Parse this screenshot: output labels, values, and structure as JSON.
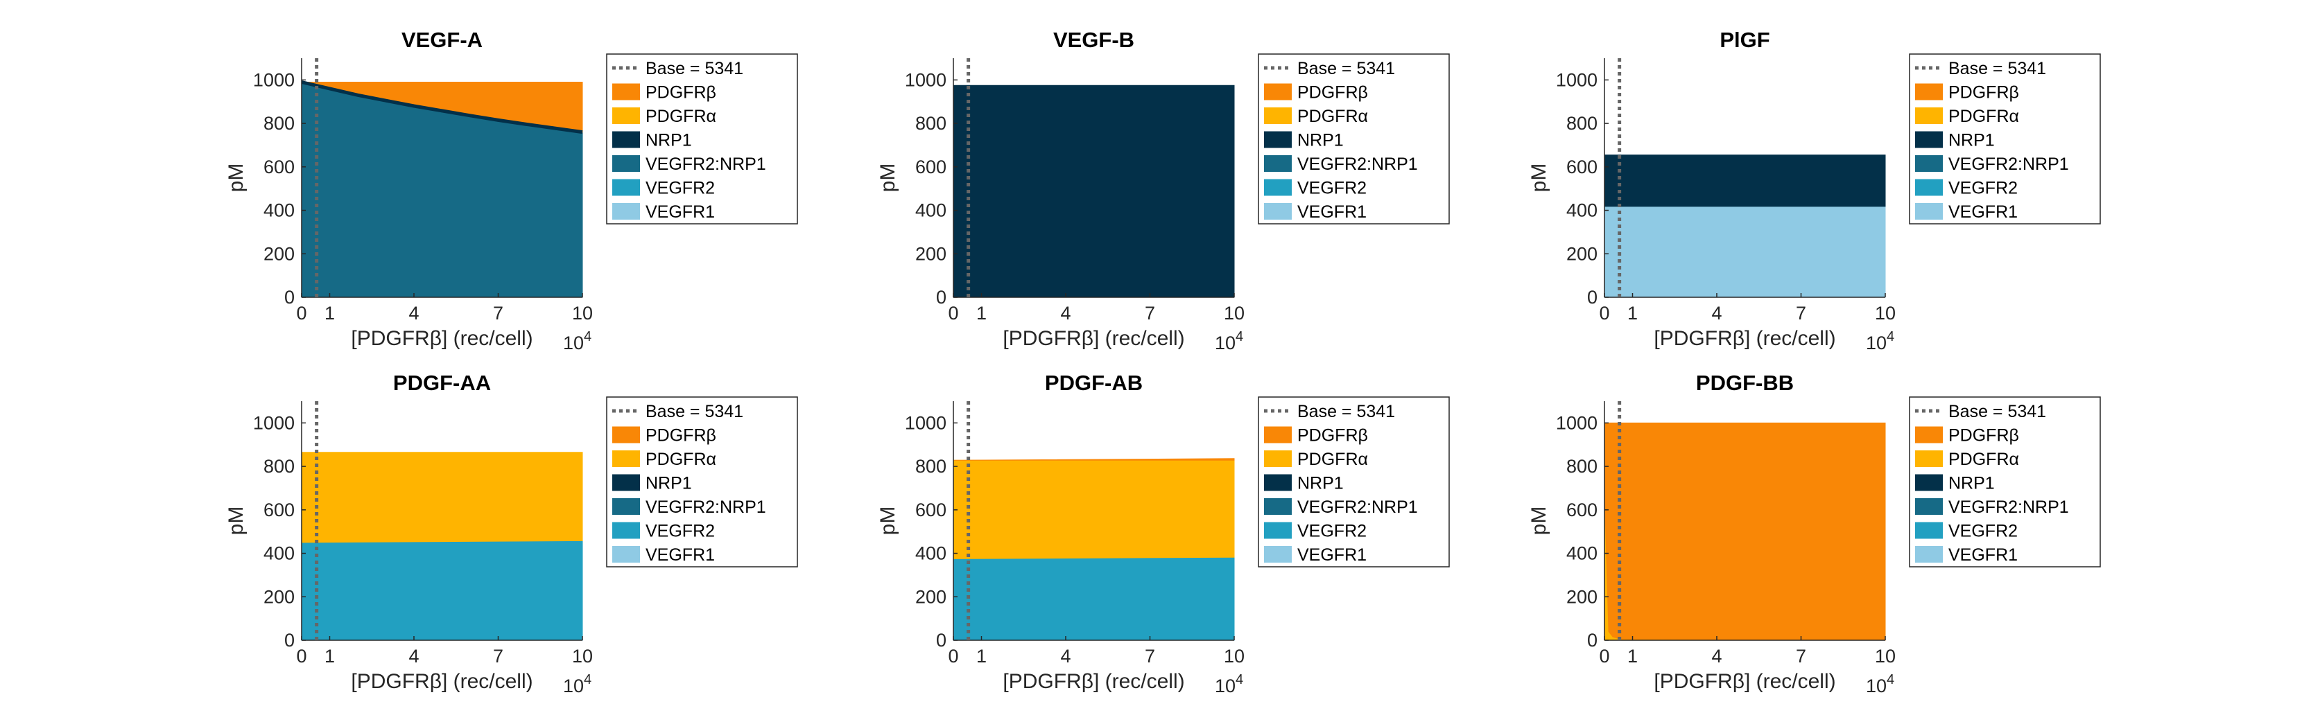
{
  "figure": {
    "legend_entries": [
      {
        "label": "Base = 5341",
        "style": "dotted-line",
        "color": "#666666"
      },
      {
        "label": "PDGFRβ",
        "style": "patch",
        "color": "#F98706"
      },
      {
        "label": "PDGFRα",
        "style": "patch",
        "color": "#FFB400"
      },
      {
        "label": "NRP1",
        "style": "patch",
        "color": "#033049"
      },
      {
        "label": "VEGFR2:NRP1",
        "style": "patch",
        "color": "#166A86"
      },
      {
        "label": "VEGFR2",
        "style": "patch",
        "color": "#22A0C1"
      },
      {
        "label": "VEGFR1",
        "style": "patch",
        "color": "#8FCAE4"
      }
    ]
  },
  "chart_data": [
    {
      "type": "area",
      "title": "VEGF-A",
      "xlabel": "[PDGFRβ] (rec/cell)",
      "x_exponent": "10^4",
      "ylabel": "pM",
      "xlim": [
        0,
        10
      ],
      "ylim": [
        0,
        1100
      ],
      "xticks": [
        0,
        1,
        4,
        7,
        10
      ],
      "yticks": [
        0,
        200,
        400,
        600,
        800,
        1000
      ],
      "base_line_x": 0.5341,
      "x": [
        0,
        1,
        2,
        3,
        4,
        5,
        6,
        7,
        8,
        9,
        10
      ],
      "series": [
        {
          "name": "VEGFR1",
          "values": [
            0,
            0,
            0,
            0,
            0,
            0,
            0,
            0,
            0,
            0,
            0
          ]
        },
        {
          "name": "VEGFR2",
          "values": [
            0,
            0,
            0,
            0,
            0,
            0,
            0,
            0,
            0,
            0,
            0
          ]
        },
        {
          "name": "VEGFR2:NRP1",
          "values": [
            990,
            960,
            930,
            905,
            880,
            858,
            836,
            815,
            796,
            778,
            760
          ]
        },
        {
          "name": "NRP1",
          "values": [
            0,
            0,
            0,
            0,
            0,
            0,
            0,
            0,
            0,
            0,
            0
          ]
        },
        {
          "name": "PDGFRα",
          "values": [
            0,
            0,
            0,
            0,
            0,
            0,
            0,
            0,
            0,
            0,
            0
          ]
        },
        {
          "name": "PDGFRβ",
          "values": [
            0,
            30,
            60,
            85,
            110,
            132,
            154,
            175,
            194,
            212,
            230
          ]
        }
      ]
    },
    {
      "type": "area",
      "title": "VEGF-B",
      "xlabel": "[PDGFRβ] (rec/cell)",
      "x_exponent": "10^4",
      "ylabel": "pM",
      "xlim": [
        0,
        10
      ],
      "ylim": [
        0,
        1100
      ],
      "xticks": [
        0,
        1,
        4,
        7,
        10
      ],
      "yticks": [
        0,
        200,
        400,
        600,
        800,
        1000
      ],
      "base_line_x": 0.5341,
      "x": [
        0,
        10
      ],
      "series": [
        {
          "name": "VEGFR1",
          "values": [
            0,
            0
          ]
        },
        {
          "name": "VEGFR2",
          "values": [
            0,
            0
          ]
        },
        {
          "name": "VEGFR2:NRP1",
          "values": [
            0,
            0
          ]
        },
        {
          "name": "NRP1",
          "values": [
            975,
            975
          ]
        },
        {
          "name": "PDGFRα",
          "values": [
            0,
            0
          ]
        },
        {
          "name": "PDGFRβ",
          "values": [
            0,
            0
          ]
        }
      ]
    },
    {
      "type": "area",
      "title": "PlGF",
      "xlabel": "[PDGFRβ] (rec/cell)",
      "x_exponent": "10^4",
      "ylabel": "pM",
      "xlim": [
        0,
        10
      ],
      "ylim": [
        0,
        1100
      ],
      "xticks": [
        0,
        1,
        4,
        7,
        10
      ],
      "yticks": [
        0,
        200,
        400,
        600,
        800,
        1000
      ],
      "base_line_x": 0.5341,
      "x": [
        0,
        10
      ],
      "series": [
        {
          "name": "VEGFR1",
          "values": [
            418,
            418
          ]
        },
        {
          "name": "VEGFR2",
          "values": [
            0,
            0
          ]
        },
        {
          "name": "VEGFR2:NRP1",
          "values": [
            0,
            0
          ]
        },
        {
          "name": "NRP1",
          "values": [
            237,
            237
          ]
        },
        {
          "name": "PDGFRα",
          "values": [
            0,
            0
          ]
        },
        {
          "name": "PDGFRβ",
          "values": [
            0,
            0
          ]
        }
      ]
    },
    {
      "type": "area",
      "title": "PDGF-AA",
      "xlabel": "[PDGFRβ] (rec/cell)",
      "x_exponent": "10^4",
      "ylabel": "pM",
      "xlim": [
        0,
        10
      ],
      "ylim": [
        0,
        1100
      ],
      "xticks": [
        0,
        1,
        4,
        7,
        10
      ],
      "yticks": [
        0,
        200,
        400,
        600,
        800,
        1000
      ],
      "base_line_x": 0.5341,
      "x": [
        0,
        10
      ],
      "series": [
        {
          "name": "VEGFR1",
          "values": [
            0,
            0
          ]
        },
        {
          "name": "VEGFR2",
          "values": [
            450,
            458
          ]
        },
        {
          "name": "VEGFR2:NRP1",
          "values": [
            0,
            0
          ]
        },
        {
          "name": "NRP1",
          "values": [
            0,
            0
          ]
        },
        {
          "name": "PDGFRα",
          "values": [
            415,
            407
          ]
        },
        {
          "name": "PDGFRβ",
          "values": [
            0,
            0
          ]
        }
      ]
    },
    {
      "type": "area",
      "title": "PDGF-AB",
      "xlabel": "[PDGFRβ] (rec/cell)",
      "x_exponent": "10^4",
      "ylabel": "pM",
      "xlim": [
        0,
        10
      ],
      "ylim": [
        0,
        1100
      ],
      "xticks": [
        0,
        1,
        4,
        7,
        10
      ],
      "yticks": [
        0,
        200,
        400,
        600,
        800,
        1000
      ],
      "base_line_x": 0.5341,
      "x": [
        0,
        10
      ],
      "series": [
        {
          "name": "VEGFR1",
          "values": [
            0,
            0
          ]
        },
        {
          "name": "VEGFR2",
          "values": [
            375,
            382
          ]
        },
        {
          "name": "VEGFR2:NRP1",
          "values": [
            0,
            0
          ]
        },
        {
          "name": "NRP1",
          "values": [
            0,
            0
          ]
        },
        {
          "name": "PDGFRα",
          "values": [
            453,
            446
          ]
        },
        {
          "name": "PDGFRβ",
          "values": [
            0,
            8
          ]
        }
      ]
    },
    {
      "type": "area",
      "title": "PDGF-BB",
      "xlabel": "[PDGFRβ] (rec/cell)",
      "x_exponent": "10^4",
      "ylabel": "pM",
      "xlim": [
        0,
        10
      ],
      "ylim": [
        0,
        1100
      ],
      "xticks": [
        0,
        1,
        4,
        7,
        10
      ],
      "yticks": [
        0,
        200,
        400,
        600,
        800,
        1000
      ],
      "base_line_x": 0.5341,
      "x": [
        0,
        0.15,
        0.3,
        0.6,
        10
      ],
      "series": [
        {
          "name": "VEGFR1",
          "values": [
            0,
            0,
            0,
            0,
            0
          ]
        },
        {
          "name": "VEGFR2",
          "values": [
            0,
            0,
            0,
            0,
            0
          ]
        },
        {
          "name": "VEGFR2:NRP1",
          "values": [
            0,
            0,
            0,
            0,
            0
          ]
        },
        {
          "name": "NRP1",
          "values": [
            0,
            0,
            0,
            0,
            0
          ]
        },
        {
          "name": "PDGFRα",
          "values": [
            700,
            40,
            15,
            5,
            0
          ]
        },
        {
          "name": "PDGFRβ",
          "values": [
            300,
            960,
            985,
            995,
            1000
          ]
        }
      ]
    }
  ]
}
